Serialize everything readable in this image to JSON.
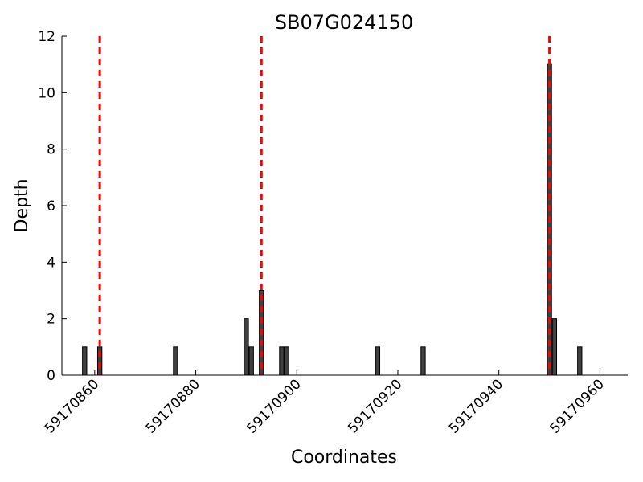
{
  "chart_data": {
    "type": "bar",
    "title": "SB07G024150",
    "xlabel": "Coordinates",
    "ylabel": "Depth",
    "xlim": [
      59170853.5,
      59170965.5
    ],
    "ylim": [
      0,
      12
    ],
    "x_ticks": [
      59170860,
      59170880,
      59170900,
      59170920,
      59170940,
      59170960
    ],
    "y_ticks": [
      0,
      2,
      4,
      6,
      8,
      10,
      12
    ],
    "grid": false,
    "bar_color": "#404040",
    "bar_edge_color": "#000000",
    "marker_color": "#ff0000",
    "bars": [
      {
        "x": 59170858,
        "depth": 1
      },
      {
        "x": 59170861,
        "depth": 1
      },
      {
        "x": 59170876,
        "depth": 1
      },
      {
        "x": 59170890,
        "depth": 2
      },
      {
        "x": 59170891,
        "depth": 1
      },
      {
        "x": 59170893,
        "depth": 3
      },
      {
        "x": 59170897,
        "depth": 1
      },
      {
        "x": 59170898,
        "depth": 1
      },
      {
        "x": 59170916,
        "depth": 1
      },
      {
        "x": 59170925,
        "depth": 1
      },
      {
        "x": 59170950,
        "depth": 11
      },
      {
        "x": 59170951,
        "depth": 2
      },
      {
        "x": 59170956,
        "depth": 1
      }
    ],
    "dashed_markers": [
      59170861,
      59170893,
      59170950
    ]
  }
}
